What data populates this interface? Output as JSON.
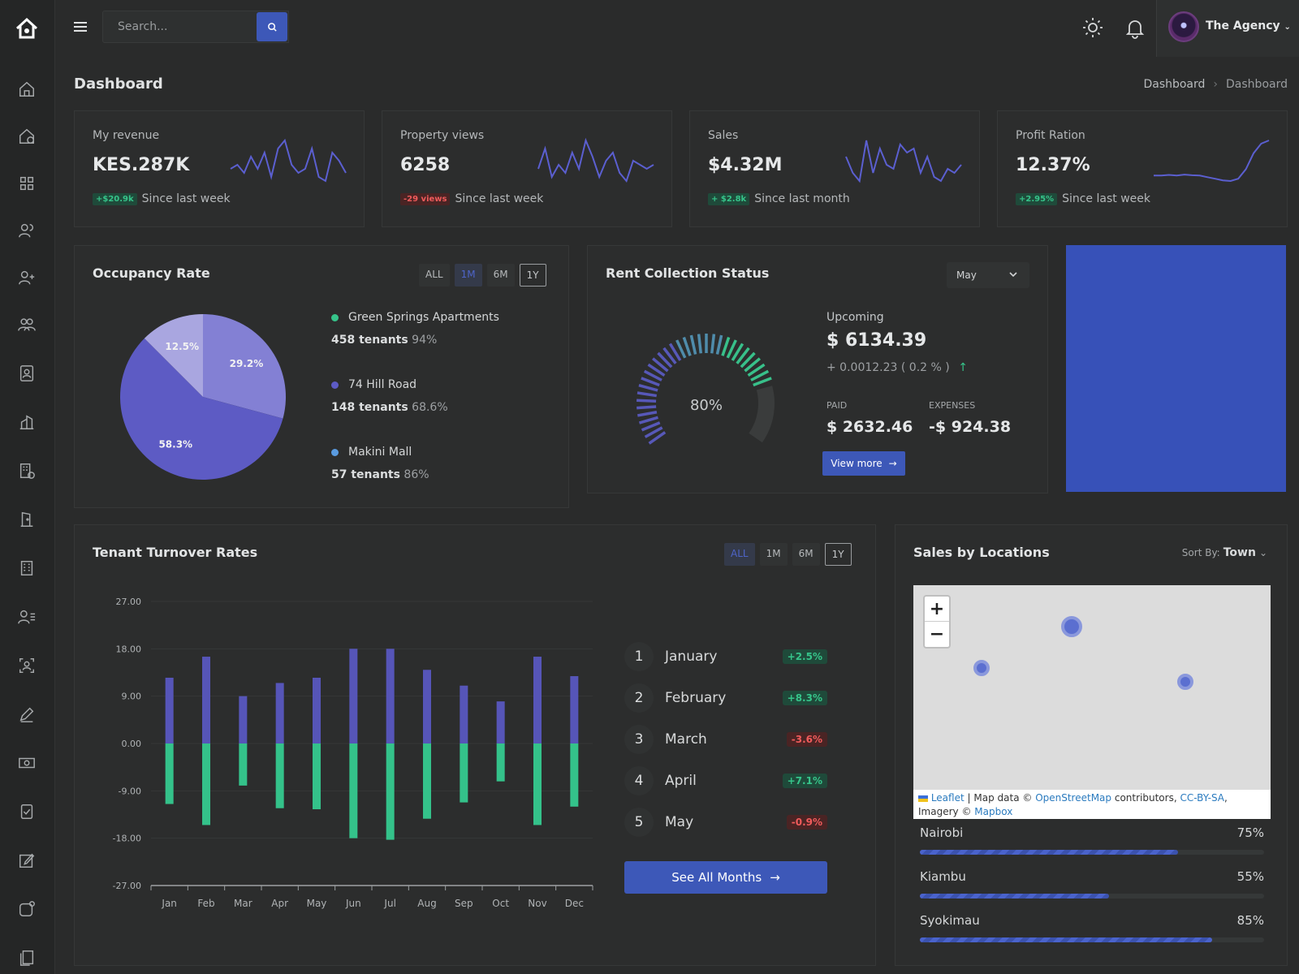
{
  "topbar": {
    "search_placeholder": "Search...",
    "user_name": "The Agency"
  },
  "page": {
    "title": "Dashboard",
    "breadcrumb": [
      "Dashboard",
      "Dashboard"
    ]
  },
  "stats": [
    {
      "label": "My revenue",
      "value": "KES.287K",
      "badge": "+$20.9k",
      "badge_type": "pos",
      "foot": "Since last week",
      "spark": [
        5,
        6,
        4,
        8,
        5,
        9,
        3,
        10,
        12,
        6,
        4,
        5,
        10,
        3,
        2,
        9,
        7,
        4
      ]
    },
    {
      "label": "Property views",
      "value": "6258",
      "badge": "-29 views",
      "badge_type": "neg",
      "foot": "Since last week",
      "spark": [
        5,
        10,
        3,
        6,
        4,
        9,
        5,
        12,
        8,
        3,
        7,
        9,
        4,
        2,
        7,
        6,
        5,
        6
      ]
    },
    {
      "label": "Sales",
      "value": "$4.32M",
      "badge": "+ $2.8k",
      "badge_type": "pos",
      "foot": "Since last month",
      "spark": [
        8,
        4,
        2,
        12,
        4,
        10,
        6,
        5,
        11,
        9,
        10,
        4,
        8,
        3,
        2,
        5,
        4,
        6
      ]
    },
    {
      "label": "Profit Ration",
      "value": "12.37%",
      "badge": "+2.95%",
      "badge_type": "pos",
      "foot": "Since last week",
      "spark": [
        4,
        4,
        4.2,
        4,
        4.3,
        4.1,
        4,
        3.5,
        3,
        2.5,
        2.3,
        3,
        6,
        11,
        14,
        15
      ]
    }
  ],
  "occupancy": {
    "title": "Occupancy Rate",
    "ranges": [
      "ALL",
      "1M",
      "6M",
      "1Y"
    ],
    "slices": [
      {
        "label": "29.2%",
        "value": 29.2,
        "color": "#8380d4"
      },
      {
        "label": "58.3%",
        "value": 58.3,
        "color": "#5d5bc4"
      },
      {
        "label": "12.5%",
        "value": 12.5,
        "color": "#a9a6e0"
      }
    ],
    "properties": [
      {
        "name": "Green Springs Apartments",
        "tenants": "458 tenants",
        "pct": "94%",
        "color": "#36c48a"
      },
      {
        "name": "74 Hill Road",
        "tenants": "148 tenants",
        "pct": "68.6%",
        "color": "#5d5bc4"
      },
      {
        "name": "Makini Mall",
        "tenants": "57 tenants",
        "pct": "86%",
        "color": "#5a9be0"
      }
    ]
  },
  "rent": {
    "title": "Rent Collection Status",
    "month": "May",
    "gauge_value": 80,
    "gauge_label": "80%",
    "upcoming_label": "Upcoming",
    "upcoming_value": "$ 6134.39",
    "change": "+ 0.0012.23 ( 0.2 % )",
    "paid_label": "PAID",
    "paid_value": "$ 2632.46",
    "expenses_label": "EXPENSES",
    "expenses_value": "-$ 924.38",
    "view_more": "View more"
  },
  "turnover": {
    "title": "Tenant Turnover Rates",
    "ranges": [
      "ALL",
      "1M",
      "6M",
      "1Y"
    ],
    "months": [
      {
        "num": "1",
        "name": "January",
        "pct": "+2.5%",
        "type": "pos"
      },
      {
        "num": "2",
        "name": "February",
        "pct": "+8.3%",
        "type": "pos"
      },
      {
        "num": "3",
        "name": "March",
        "pct": "-3.6%",
        "type": "neg"
      },
      {
        "num": "4",
        "name": "April",
        "pct": "+7.1%",
        "type": "pos"
      },
      {
        "num": "5",
        "name": "May",
        "pct": "-0.9%",
        "type": "neg"
      }
    ],
    "see_all": "See All Months"
  },
  "chart_data": {
    "type": "bar",
    "categories": [
      "Jan",
      "Feb",
      "Mar",
      "Apr",
      "May",
      "Jun",
      "Jul",
      "Aug",
      "Sep",
      "Oct",
      "Nov",
      "Dec"
    ],
    "series": [
      {
        "values": [
          12.5,
          16.5,
          9,
          11.5,
          12.5,
          18,
          18,
          14,
          11,
          8,
          16.5,
          12.8
        ],
        "color": "#5655b8"
      },
      {
        "values": [
          -11.5,
          -15.5,
          -8,
          -12.3,
          -12.5,
          -18,
          -18.3,
          -14.3,
          -11.2,
          -7.2,
          -15.5,
          -12
        ]
      }
    ],
    "yticks": [
      "27.00",
      "18.00",
      "9.00",
      "0.00",
      "-9.00",
      "-18.00",
      "-27.00"
    ],
    "ylim": [
      -27,
      27
    ],
    "grid": true
  },
  "locations": {
    "title": "Sales by Locations",
    "sort_label": "Sort By:",
    "sort_value": "Town",
    "attribution": {
      "leaflet": "Leaflet",
      "map_data": "| Map data ©",
      "osm": "OpenStreetMap",
      "contrib": "contributors,",
      "license": "CC-BY-SA",
      "imagery": ", Imagery",
      "copyright": "©",
      "mapbox": "Mapbox"
    },
    "towns": [
      {
        "name": "Nairobi",
        "pct": "75%",
        "value": 0.75
      },
      {
        "name": "Kiambu",
        "pct": "55%",
        "value": 0.55
      },
      {
        "name": "Syokimau",
        "pct": "85%",
        "value": 0.85
      }
    ]
  }
}
